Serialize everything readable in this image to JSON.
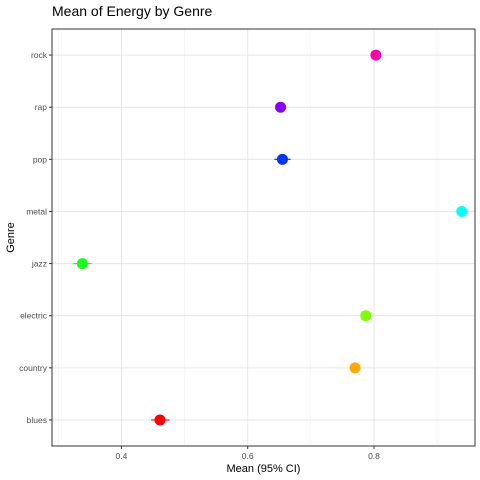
{
  "chart_data": {
    "type": "scatter",
    "title": "Mean of Energy by Genre",
    "xlabel": "Mean (95% CI)",
    "ylabel": "Genre",
    "xlim": [
      0.29,
      0.96
    ],
    "x_ticks": [
      0.4,
      0.6,
      0.8
    ],
    "x_tick_labels": [
      "0.4",
      "0.6",
      "0.8"
    ],
    "grid": true,
    "points": [
      {
        "category": "blues",
        "value": 0.461,
        "ci_low": 0.447,
        "ci_high": 0.476,
        "color": "#FF0000"
      },
      {
        "category": "country",
        "value": 0.77,
        "ci_low": 0.763,
        "ci_high": 0.777,
        "color": "#FFAA00"
      },
      {
        "category": "electric",
        "value": 0.787,
        "ci_low": 0.781,
        "ci_high": 0.793,
        "color": "#80FF00"
      },
      {
        "category": "jazz",
        "value": 0.338,
        "ci_low": 0.324,
        "ci_high": 0.353,
        "color": "#1AFF1A"
      },
      {
        "category": "metal",
        "value": 0.939,
        "ci_low": 0.934,
        "ci_high": 0.944,
        "color": "#00FFFF"
      },
      {
        "category": "pop",
        "value": 0.655,
        "ci_low": 0.642,
        "ci_high": 0.668,
        "color": "#0033FF"
      },
      {
        "category": "rap",
        "value": 0.652,
        "ci_low": 0.645,
        "ci_high": 0.659,
        "color": "#8800FF"
      },
      {
        "category": "rock",
        "value": 0.803,
        "ci_low": 0.797,
        "ci_high": 0.809,
        "color": "#FF00AA"
      }
    ]
  }
}
